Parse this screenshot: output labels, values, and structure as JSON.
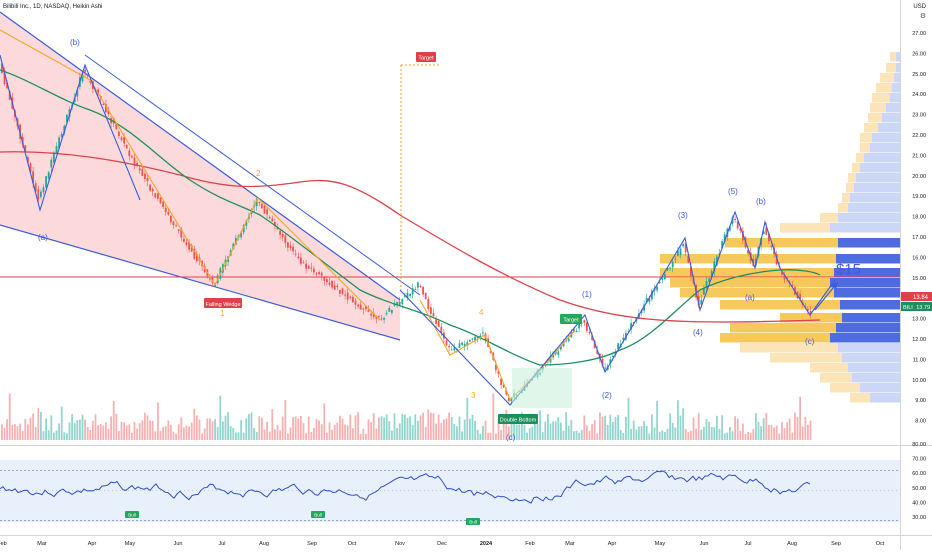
{
  "header": {
    "title": "Bilibili Inc., 1D, NASDAQ, Heikin Ashi",
    "currency": "USD"
  },
  "price_axis": {
    "labels": [
      "27.00",
      "26.00",
      "25.00",
      "24.00",
      "23.00",
      "22.00",
      "21.00",
      "20.00",
      "19.00",
      "18.00",
      "17.00",
      "16.00",
      "15.00",
      "14.00",
      "13.00",
      "12.00",
      "11.00",
      "10.00",
      "9.00",
      "8.00"
    ],
    "last_price_a": "13.84",
    "last_price_b": "13.79",
    "last_price_b_prefix": "BILI"
  },
  "rsi_axis": {
    "labels": [
      "80.00",
      "70.00",
      "60.00",
      "50.00",
      "40.00",
      "30.00"
    ]
  },
  "time_axis": {
    "labels": [
      "Feb",
      "Mar",
      "Apr",
      "May",
      "Jun",
      "Jul",
      "Aug",
      "Sep",
      "Oct",
      "Nov",
      "Dec",
      "2024",
      "Feb",
      "Mar",
      "Apr",
      "May",
      "Jun",
      "Jul",
      "Aug",
      "Sep",
      "Oct"
    ]
  },
  "annotations": {
    "wave_b_top": "(b)",
    "wave_a_low": "(a)",
    "wave_2": "2",
    "wave_1": "1",
    "wave_4": "4",
    "wave_3": "3",
    "wave_c": "(c)",
    "wave_i": "(1)",
    "wave_ii": "(2)",
    "wave_iii": "(3)",
    "wave_iv": "(4)",
    "wave_v": "(5)",
    "wave_b2": "(b)",
    "wave_a2": "(a)",
    "wave_c2": "(c)",
    "falling_wedge": "Falling Wedge",
    "target_top": "Target",
    "target_mid": "Target",
    "double_bottom": "Double Bottom",
    "projection": "$15",
    "bull_tag": "Bull"
  },
  "colors": {
    "up": "#26a69a",
    "down": "#ef5350",
    "wedge_fill": "#fbd0d3",
    "blue_line": "#3b5bdb",
    "orange_line": "#f5a623",
    "green_ma": "#1e8f5c",
    "red_ma": "#e0404a",
    "rsi_line": "#2f4ec4"
  }
}
